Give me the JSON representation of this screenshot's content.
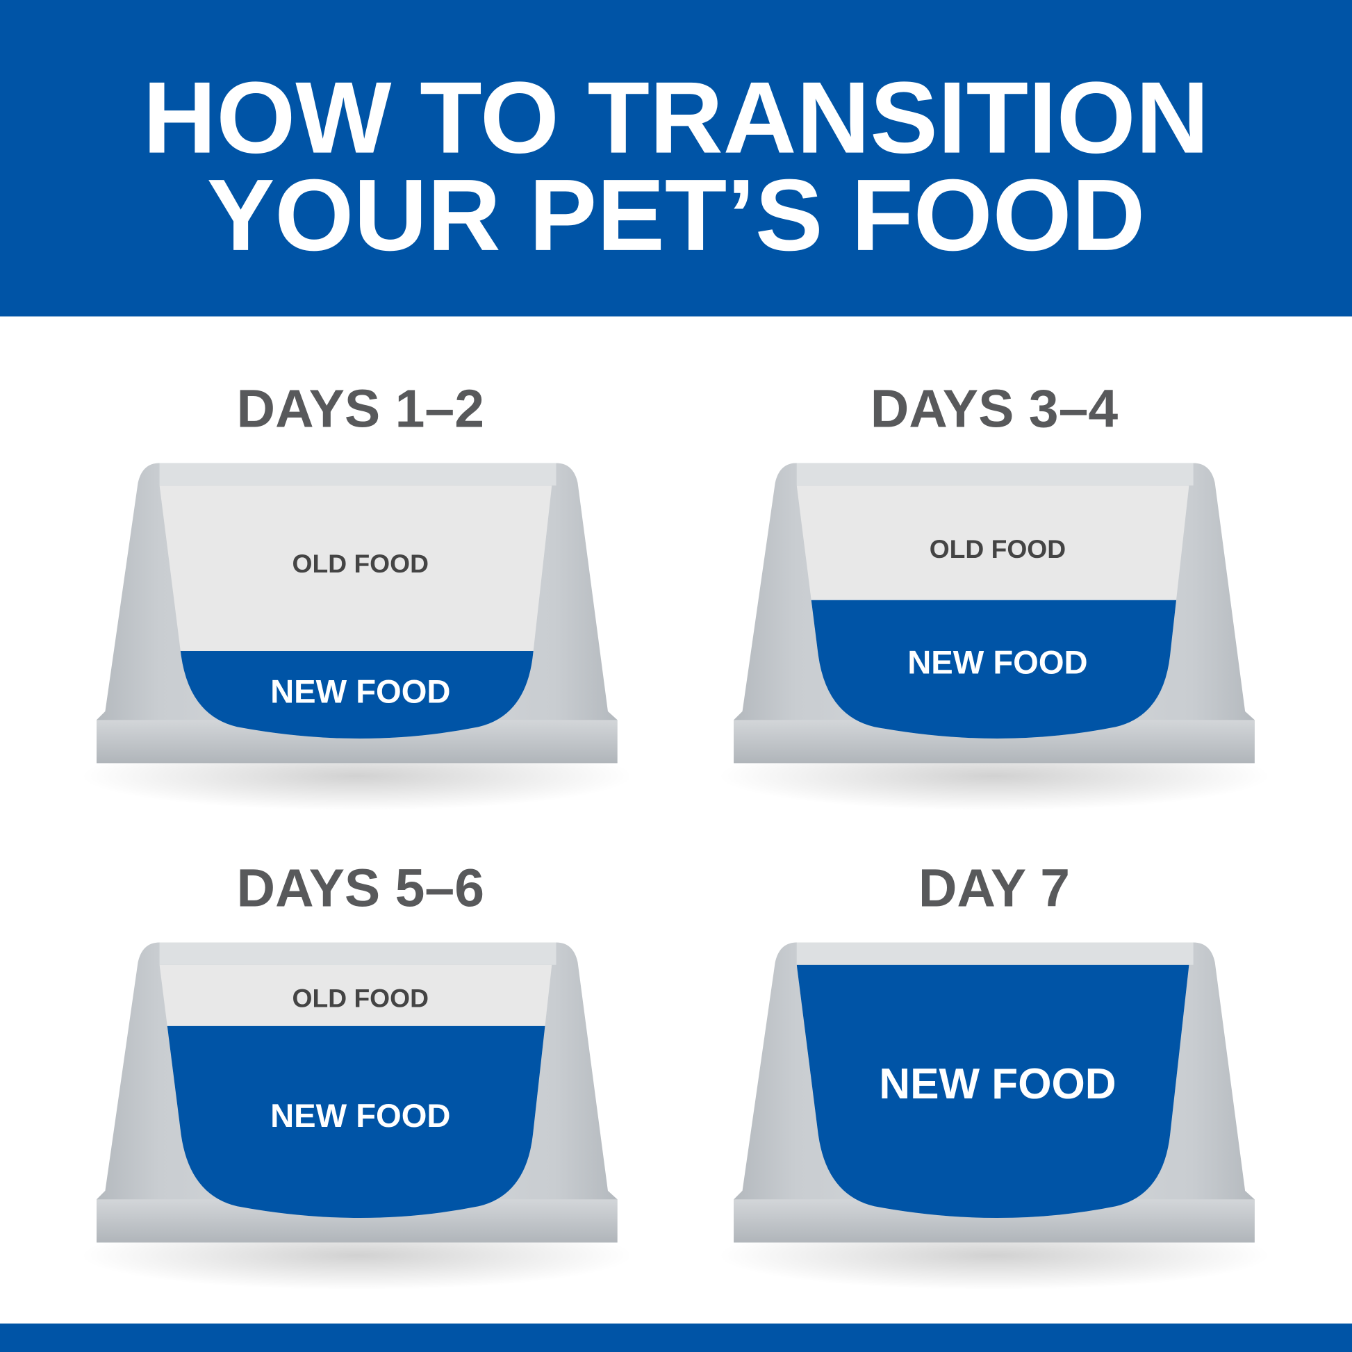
{
  "header": {
    "title_line1": "HOW TO TRANSITION",
    "title_line2": "YOUR PET’S FOOD"
  },
  "colors": {
    "brand_blue": "#0054a6",
    "old_food": "#e8e8e8",
    "heading_gray": "#58595b"
  },
  "steps": [
    {
      "title": "DAYS 1–2",
      "old_label": "OLD FOOD",
      "new_label": "NEW FOOD",
      "new_food_fraction": 0.35
    },
    {
      "title": "DAYS 3–4",
      "old_label": "OLD FOOD",
      "new_label": "NEW FOOD",
      "new_food_fraction": 0.55
    },
    {
      "title": "DAYS 5–6",
      "old_label": "OLD FOOD",
      "new_label": "NEW FOOD",
      "new_food_fraction": 0.75
    },
    {
      "title": "DAY 7",
      "new_label": "NEW FOOD",
      "new_food_fraction": 1.0
    }
  ]
}
